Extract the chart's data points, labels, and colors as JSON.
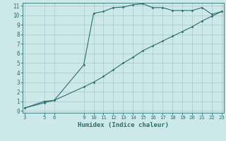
{
  "xlabel": "Humidex (Indice chaleur)",
  "bg_color": "#cde8e8",
  "grid_color": "#b0cccc",
  "line_color": "#2d6e6e",
  "curve_x": [
    3,
    5,
    6,
    9,
    10,
    11,
    12,
    13,
    14,
    15,
    16,
    17,
    18,
    19,
    20,
    21,
    22,
    23
  ],
  "curve_y": [
    0.3,
    1.0,
    1.1,
    4.8,
    10.2,
    10.4,
    10.8,
    10.85,
    11.1,
    11.2,
    10.8,
    10.8,
    10.5,
    10.5,
    10.5,
    10.8,
    10.1,
    10.4
  ],
  "linear_x": [
    3,
    5,
    6,
    9,
    10,
    11,
    12,
    13,
    14,
    15,
    16,
    17,
    18,
    19,
    20,
    21,
    22,
    23
  ],
  "linear_y": [
    0.3,
    0.85,
    1.1,
    2.5,
    3.0,
    3.6,
    4.3,
    5.0,
    5.6,
    6.3,
    6.8,
    7.3,
    7.8,
    8.3,
    8.8,
    9.4,
    9.9,
    10.4
  ],
  "xlim": [
    3,
    23
  ],
  "ylim": [
    0,
    11
  ],
  "xticks": [
    3,
    5,
    6,
    9,
    10,
    11,
    12,
    13,
    14,
    15,
    16,
    17,
    18,
    19,
    20,
    21,
    22,
    23
  ],
  "yticks": [
    0,
    1,
    2,
    3,
    4,
    5,
    6,
    7,
    8,
    9,
    10,
    11
  ]
}
